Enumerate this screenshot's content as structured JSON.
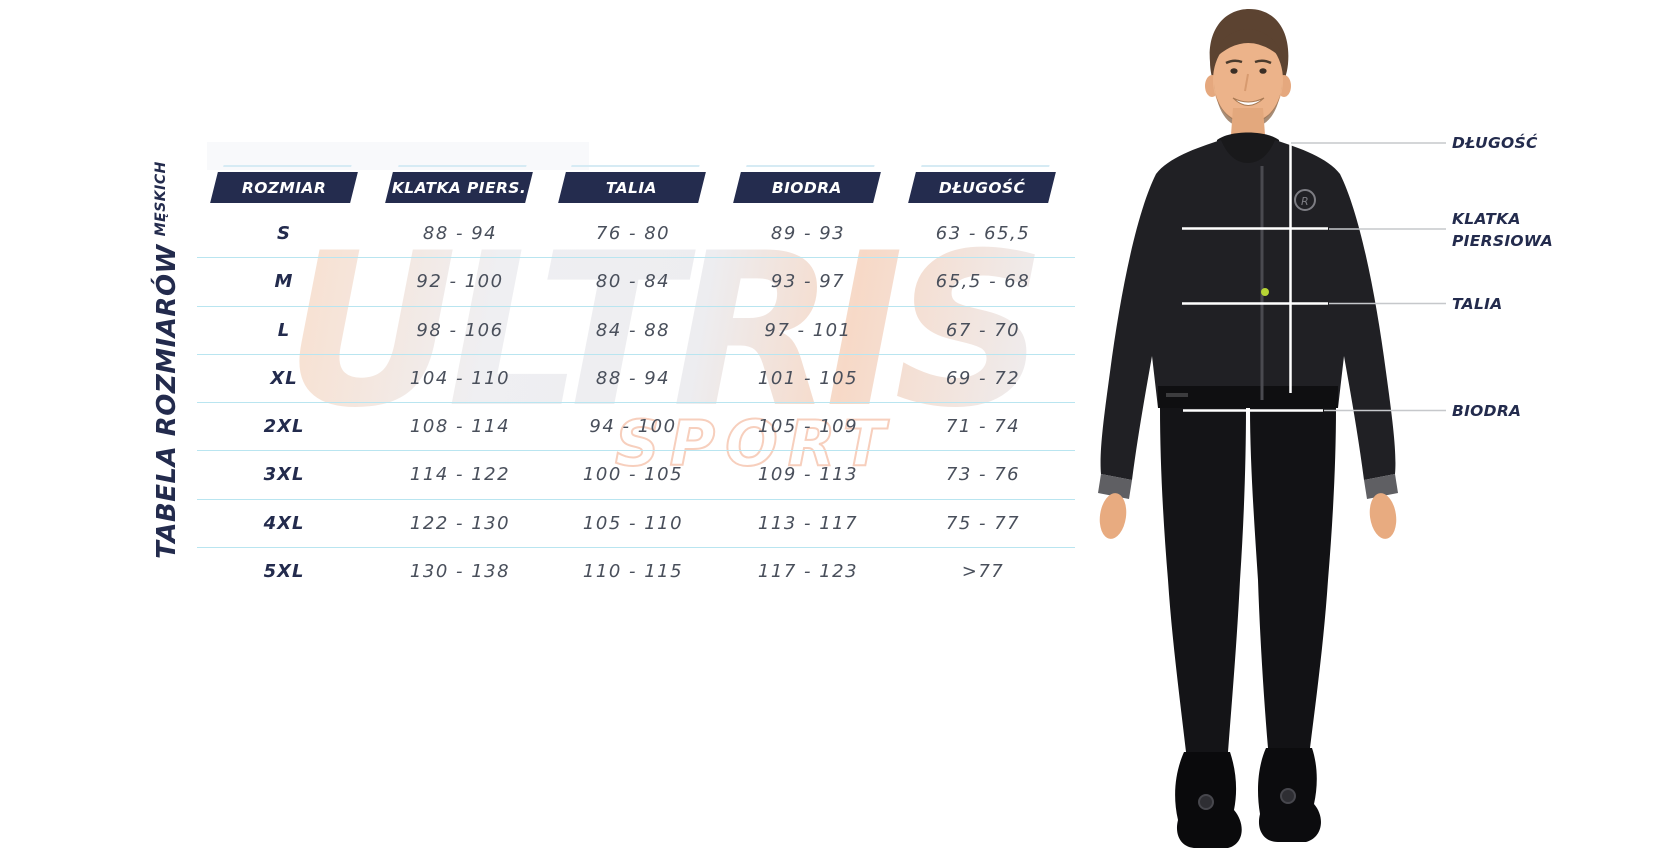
{
  "chart_data": {
    "type": "table",
    "title": "TABELA ROZMIARÓW",
    "subtitle": "MĘSKICH",
    "columns": [
      "ROZMIAR",
      "KLATKA PIERS.",
      "TALIA",
      "BIODRA",
      "DŁUGOŚĆ"
    ],
    "rows": [
      [
        "S",
        "88 - 94",
        "76 - 80",
        "89 - 93",
        "63 - 65,5"
      ],
      [
        "M",
        "92 - 100",
        "80 - 84",
        "93 - 97",
        "65,5 - 68"
      ],
      [
        "L",
        "98 - 106",
        "84 - 88",
        "97 - 101",
        "67 - 70"
      ],
      [
        "XL",
        "104 - 110",
        "88 - 94",
        "101 - 105",
        "69 - 72"
      ],
      [
        "2XL",
        "108 - 114",
        "94 - 100",
        "105 - 109",
        "71 - 74"
      ],
      [
        "3XL",
        "114 - 122",
        "100 - 105",
        "109 - 113",
        "73 - 76"
      ],
      [
        "4XL",
        "122 - 130",
        "105 - 110",
        "113 - 117",
        "75 - 77"
      ],
      [
        "5XL",
        "130 - 138",
        "110 - 115",
        "117 - 123",
        ">77"
      ]
    ]
  },
  "side_title": {
    "main": "TABELA ROZMIARÓW",
    "sub": "MĘSKICH"
  },
  "watermark": {
    "word": "ULTRIS",
    "subword": "SPORT"
  },
  "figure": {
    "measurement_labels": [
      "DŁUGOŚĆ",
      "KLATKA PIERSIOWA",
      "TALIA",
      "BIODRA"
    ],
    "zip_dot_color": "#b6d435"
  },
  "colors": {
    "header_navy": "#242c4e",
    "row_separator": "#b9e5f0",
    "value_text": "#494f5b",
    "size_text": "#232b4d",
    "label_navy": "#232b4d",
    "measure_line_white": "#ffffff",
    "connector_gray": "#c6c8cb"
  }
}
